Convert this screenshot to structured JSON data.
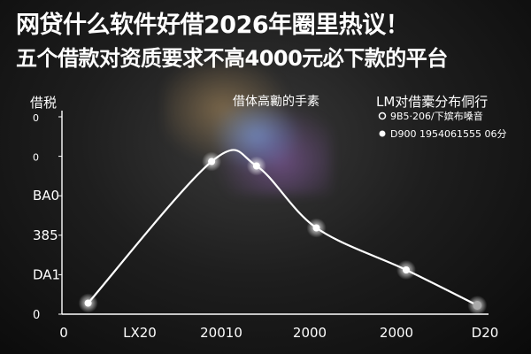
{
  "headline": {
    "line1": "网贷什么软件好借2026年圈里热议！",
    "line2": "五个借款对资质要求不高4000元必下款的平台"
  },
  "chart_data": {
    "type": "line",
    "title": "借体高勷的手素",
    "ylabel": "借税",
    "x_ticks": [
      "0",
      "LX20",
      "20010",
      "2000",
      "2000",
      "D20"
    ],
    "y_ticks": [
      "0",
      "DA1",
      "385",
      "BA0",
      "0",
      "0"
    ],
    "legend": {
      "title": "LM对借橐分布侗行",
      "placement": "top-right",
      "entries": [
        {
          "label": "9B5·206/下嫔布嗓音",
          "marker": "ring"
        },
        {
          "label": "D900 1954061555 06分",
          "marker": "dot"
        }
      ]
    },
    "series": [
      {
        "x": [
          0.35,
          2.0,
          2.6,
          3.4,
          4.6,
          5.55
        ],
        "y": [
          0.25,
          3.45,
          3.35,
          1.95,
          1.0,
          0.2
        ]
      }
    ],
    "xlim": [
      0,
      5.7
    ],
    "ylim": [
      0,
      4.5
    ],
    "grid": false,
    "line_color": "#ffffff"
  },
  "colors": {
    "background": "#111111",
    "text": "#ffffff",
    "axis": "#ffffff"
  }
}
